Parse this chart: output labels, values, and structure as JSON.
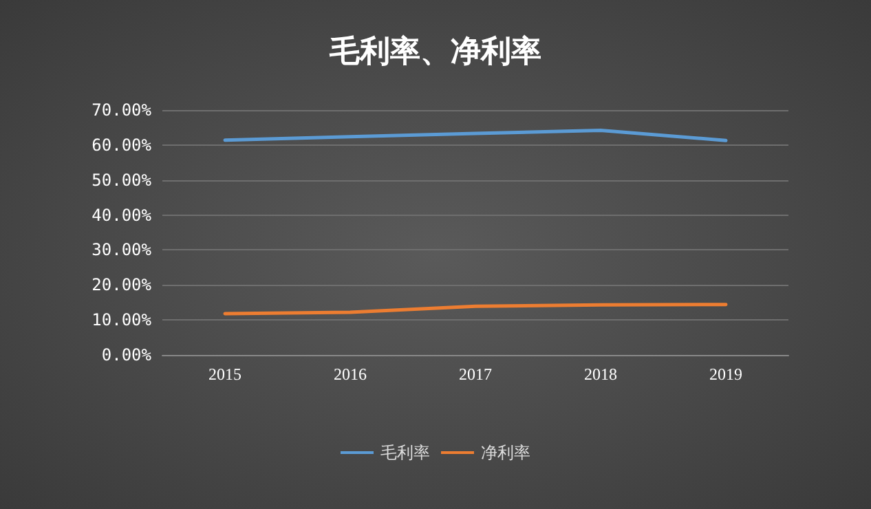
{
  "chart_data": {
    "type": "line",
    "title": "毛利率、净利率",
    "categories": [
      "2015",
      "2016",
      "2017",
      "2018",
      "2019"
    ],
    "series": [
      {
        "name": "毛利率",
        "color": "#5b9bd5",
        "values": [
          61.4,
          62.4,
          63.3,
          64.2,
          61.3
        ]
      },
      {
        "name": "净利率",
        "color": "#ed7d31",
        "values": [
          11.8,
          12.2,
          13.9,
          14.3,
          14.4
        ]
      }
    ],
    "ylim": [
      0,
      70
    ],
    "yticks": [
      {
        "value": 0,
        "label": "0.00%"
      },
      {
        "value": 10,
        "label": "10.00%"
      },
      {
        "value": 20,
        "label": "20.00%"
      },
      {
        "value": 30,
        "label": "30.00%"
      },
      {
        "value": 40,
        "label": "40.00%"
      },
      {
        "value": 50,
        "label": "50.00%"
      },
      {
        "value": 60,
        "label": "60.00%"
      },
      {
        "value": 70,
        "label": "70.00%"
      }
    ],
    "grid": "y",
    "legend": "bottom",
    "marker": "none",
    "line_style": "solid"
  }
}
